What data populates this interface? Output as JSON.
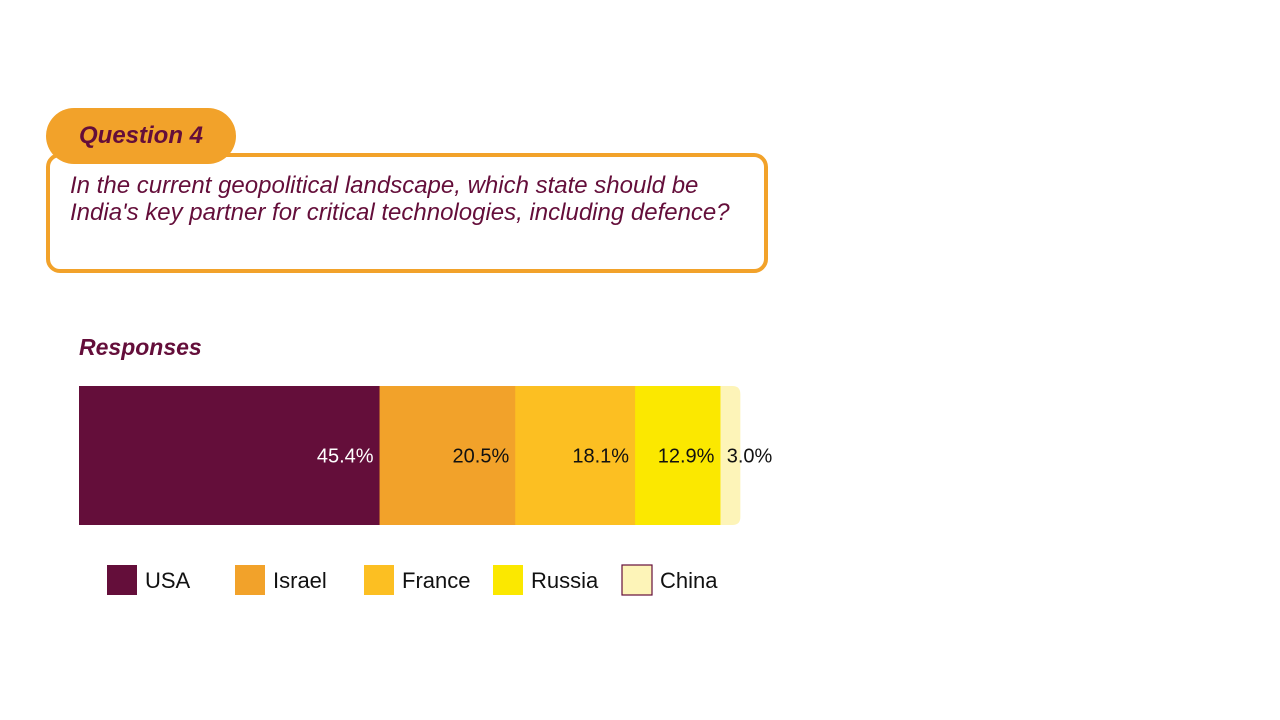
{
  "question": {
    "tag": "Question 4",
    "text": "In the current geopolitical landscape, which state should be India's key partner for critical technologies, including defence?"
  },
  "responses_title": "Responses",
  "chart_data": {
    "type": "bar",
    "orientation": "horizontal-stacked",
    "categories": [
      "USA",
      "Israel",
      "France",
      "Russia",
      "China"
    ],
    "values": [
      45.4,
      20.5,
      18.1,
      12.9,
      3.0
    ],
    "labels": [
      "45.4%",
      "20.5%",
      "18.1%",
      "12.9%",
      "3.0%"
    ],
    "colors": [
      "#640e3a",
      "#f2a22a",
      "#fcbf22",
      "#fbe800",
      "#fdf4b8"
    ],
    "label_colors": [
      "#ffffff",
      "#111111",
      "#111111",
      "#111111",
      "#111111"
    ],
    "legend_placement": "bottom",
    "grid": false
  }
}
